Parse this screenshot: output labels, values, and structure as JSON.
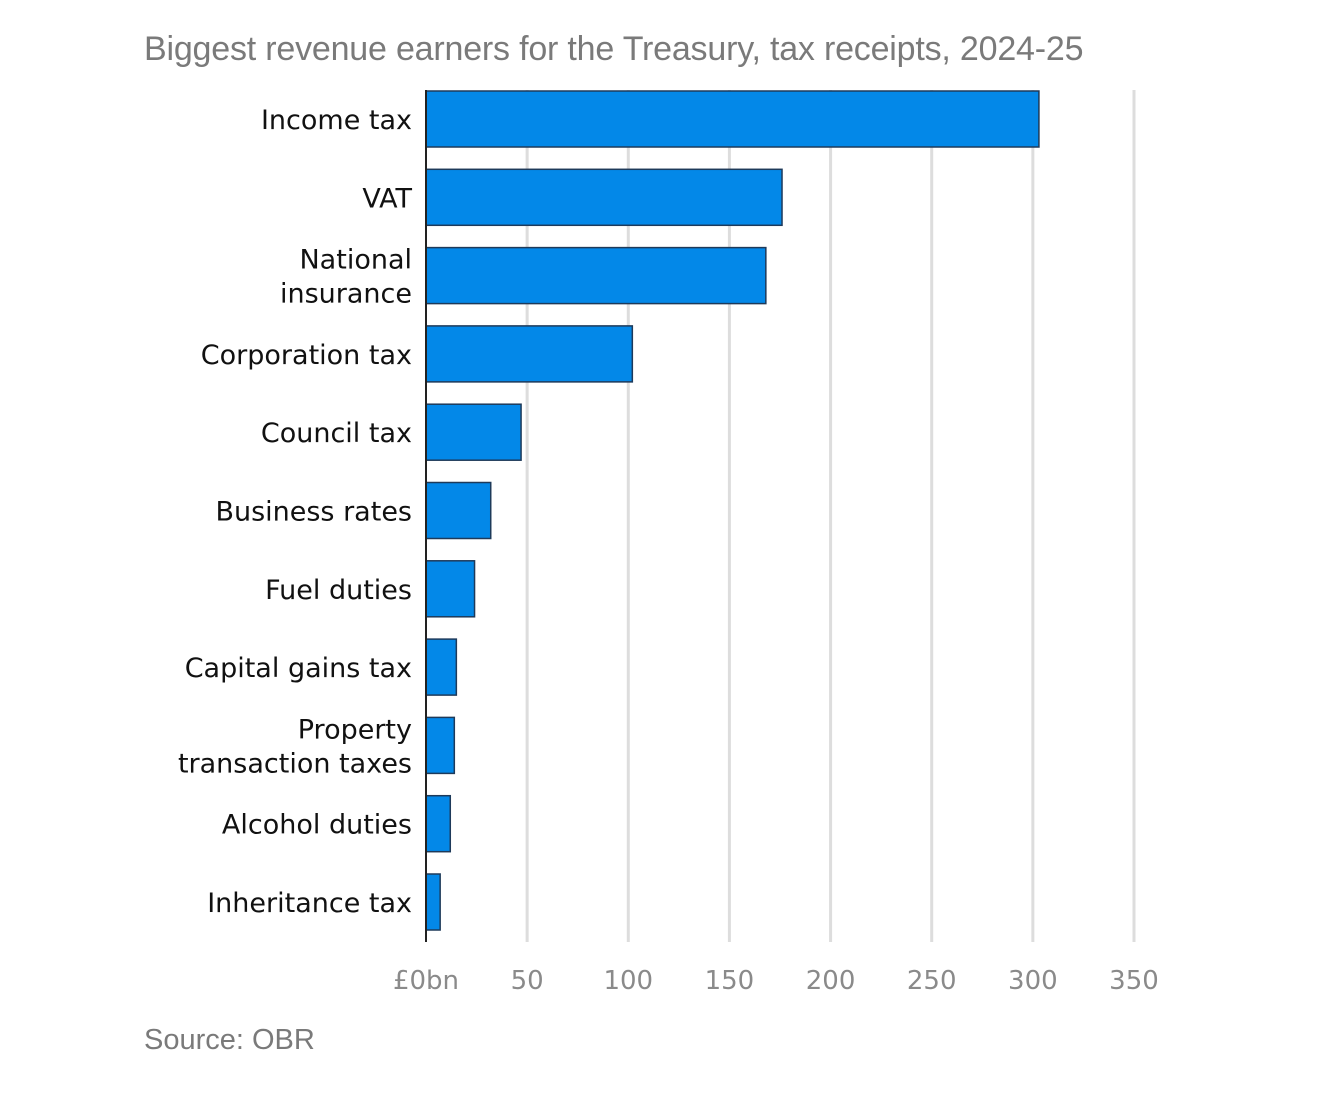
{
  "chart_data": {
    "type": "bar",
    "orientation": "horizontal",
    "title": "Biggest revenue earners for the Treasury, tax receipts, 2024-25",
    "source": "Source: OBR",
    "categories": [
      [
        "Income tax"
      ],
      [
        "VAT"
      ],
      [
        "National",
        "insurance"
      ],
      [
        "Corporation tax"
      ],
      [
        "Council tax"
      ],
      [
        "Business rates"
      ],
      [
        "Fuel duties"
      ],
      [
        "Capital gains tax"
      ],
      [
        "Property",
        "transaction taxes"
      ],
      [
        "Alcohol duties"
      ],
      [
        "Inheritance tax"
      ]
    ],
    "values": [
      303,
      176,
      168,
      102,
      47,
      32,
      24,
      15,
      14,
      12,
      7
    ],
    "xlim": [
      0,
      350
    ],
    "xticks": [
      0,
      50,
      100,
      150,
      200,
      250,
      300,
      350
    ],
    "xtick_labels": [
      "£0bn",
      "50",
      "100",
      "150",
      "200",
      "250",
      "300",
      "350"
    ],
    "grid": true,
    "bar_color": "#0388e8",
    "bar_edge_color": "#1e3a5a",
    "grid_color": "#dddddd"
  }
}
